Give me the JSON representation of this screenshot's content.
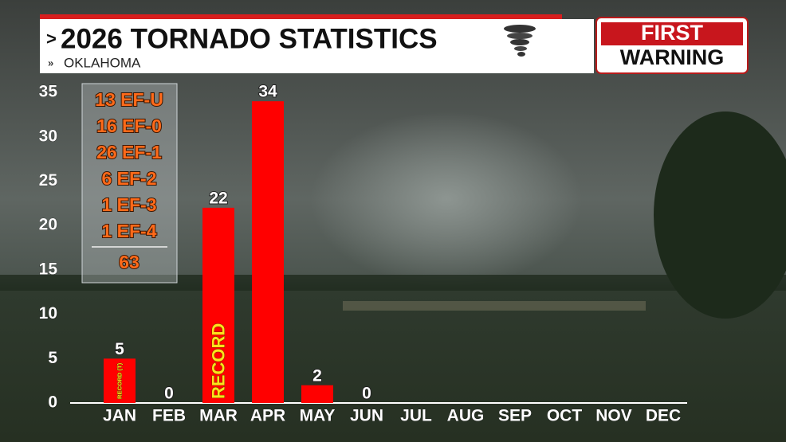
{
  "chart_data": {
    "type": "bar",
    "title": "2026 TORNADO STATISTICS",
    "subtitle": "OKLAHOMA",
    "badge": [
      "FIRST",
      "WARNING"
    ],
    "categories": [
      "JAN",
      "FEB",
      "MAR",
      "APR",
      "MAY",
      "JUN",
      "JUL",
      "AUG",
      "SEP",
      "OCT",
      "NOV",
      "DEC"
    ],
    "values": [
      5,
      0,
      22,
      34,
      2,
      0,
      null,
      null,
      null,
      null,
      null,
      null
    ],
    "bar_labels": [
      "RECORD (T)",
      null,
      "RECORD",
      null,
      null,
      null,
      null,
      null,
      null,
      null,
      null,
      null
    ],
    "color": "#ff0000",
    "ylim": [
      0,
      35
    ],
    "yticks": [
      0,
      5,
      10,
      15,
      20,
      25,
      30,
      35
    ],
    "grid": false,
    "inset": {
      "items": [
        "13 EF-U",
        "16 EF-0",
        "26 EF-1",
        "6 EF-2",
        "1 EF-3",
        "1 EF-4"
      ],
      "total": "63"
    }
  }
}
